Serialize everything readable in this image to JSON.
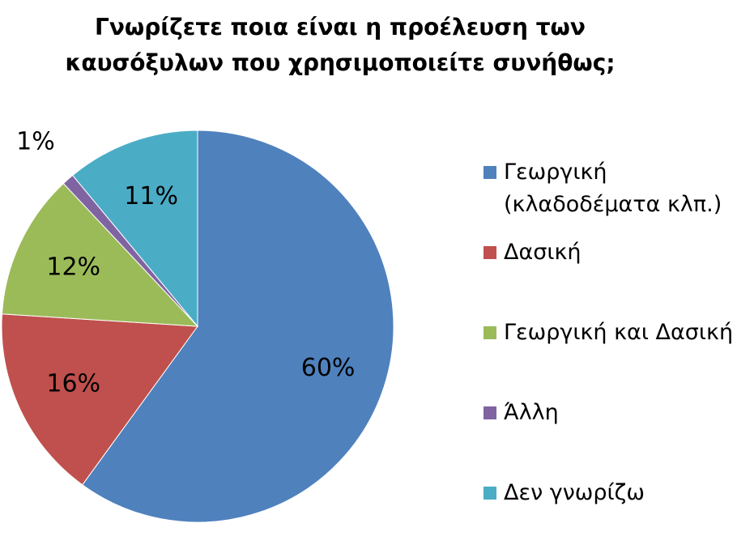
{
  "chart_data": {
    "type": "pie",
    "title": "Γνωρίζετε ποια είναι η προέλευση των καυσόξυλων που χρησιμοποιείτε συνήθως;",
    "categories": [
      "Γεωργική (κλαδοδέματα κλπ.)",
      "Δασική",
      "Γεωργική και Δασική",
      "Άλλη",
      "Δεν γνωρίζω"
    ],
    "values": [
      60,
      16,
      12,
      1,
      11
    ],
    "value_labels": [
      "60%",
      "16%",
      "12%",
      "1%",
      "11%"
    ],
    "colors": [
      "#4f81bd",
      "#c0504d",
      "#9bbb59",
      "#8064a2",
      "#4bacc6"
    ],
    "legend": "right"
  }
}
